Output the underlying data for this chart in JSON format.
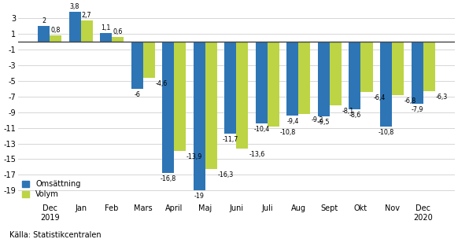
{
  "categories": [
    "Dec\n2019",
    "Jan",
    "Feb",
    "Mars",
    "April",
    "Maj",
    "Juni",
    "Juli",
    "Aug",
    "Sept",
    "Okt",
    "Nov",
    "Dec\n2020"
  ],
  "omsattning": [
    2.0,
    3.8,
    1.1,
    -6.0,
    -16.8,
    -19.0,
    -11.7,
    -10.4,
    -9.4,
    -9.5,
    -8.6,
    -10.8,
    -7.9
  ],
  "volym": [
    0.8,
    2.7,
    0.6,
    -4.6,
    -13.9,
    -16.3,
    -13.6,
    -10.8,
    -9.2,
    -8.1,
    -6.4,
    -6.8,
    -6.3
  ],
  "color_omsattning": "#2e75b6",
  "color_volym": "#bdd444",
  "legend_omsattning": "Omsättning",
  "legend_volym": "Volym",
  "ylim_min": -20.5,
  "ylim_max": 4.5,
  "yticks": [
    -19,
    -17,
    -15,
    -13,
    -11,
    -9,
    -7,
    -5,
    -3,
    -1,
    1,
    3
  ],
  "source": "Källa: Statistikcentralen",
  "bar_width": 0.38,
  "background_color": "#ffffff",
  "label_fontsize": 5.8,
  "tick_fontsize": 7.0
}
